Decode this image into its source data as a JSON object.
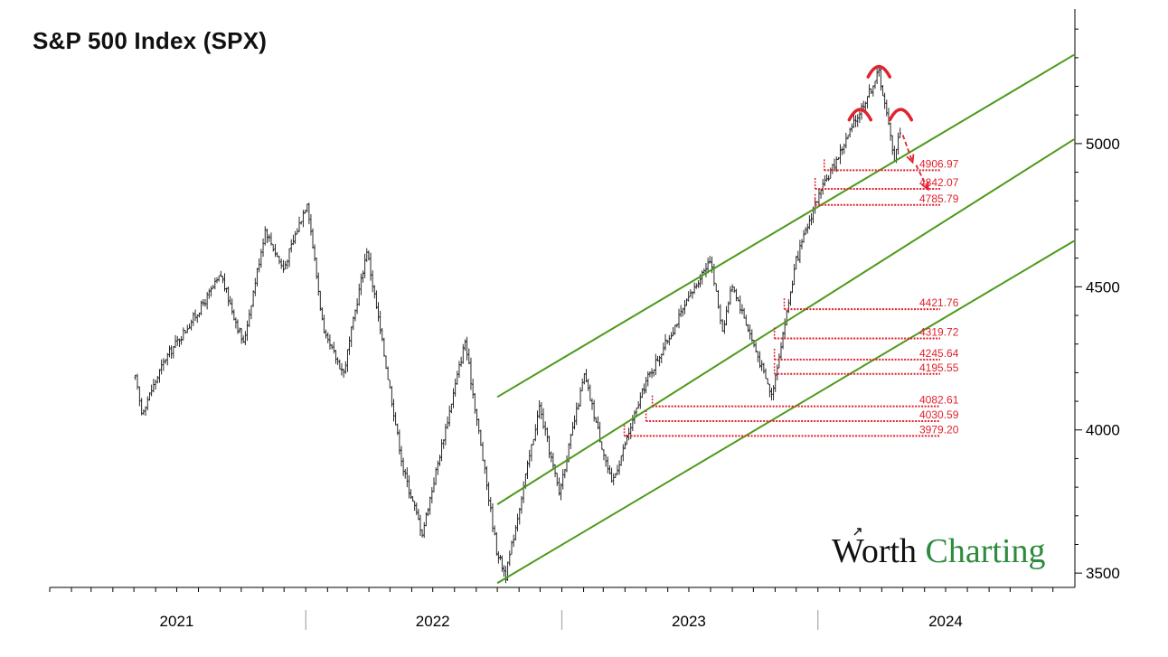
{
  "title": "S&P 500 Index (SPX)",
  "brand": {
    "word1": "Worth",
    "word2": "Charting"
  },
  "colors": {
    "price": "#111111",
    "channel": "#4c9a1a",
    "level": "#e0222e",
    "pattern": "#e0222e",
    "brand_green": "#2e8b3d"
  },
  "chart_data": {
    "type": "ohlc",
    "title": "S&P 500 Index (SPX)",
    "x_axis": {
      "tick_labels": [
        "2021",
        "2022",
        "2023",
        "2024"
      ],
      "range": [
        "2021-01-01",
        "2024-12-31"
      ]
    },
    "y_axis": {
      "ticks": [
        3500,
        4000,
        4500,
        5000
      ],
      "tick_labels": [
        "3500",
        "4000",
        "4500",
        "5000"
      ],
      "range": [
        3450,
        5470
      ],
      "side": "right"
    },
    "grid": false,
    "price_path": [
      [
        "2021-05-03",
        4180
      ],
      [
        "2021-05-12",
        4060
      ],
      [
        "2021-06-15",
        4250
      ],
      [
        "2021-08-05",
        4430
      ],
      [
        "2021-09-02",
        4540
      ],
      [
        "2021-10-04",
        4300
      ],
      [
        "2021-11-04",
        4700
      ],
      [
        "2021-11-30",
        4560
      ],
      [
        "2022-01-03",
        4800
      ],
      [
        "2022-01-27",
        4330
      ],
      [
        "2022-02-24",
        4200
      ],
      [
        "2022-03-29",
        4630
      ],
      [
        "2022-05-20",
        3860
      ],
      [
        "2022-06-16",
        3640
      ],
      [
        "2022-08-16",
        4310
      ],
      [
        "2022-09-30",
        3580
      ],
      [
        "2022-10-13",
        3490
      ],
      [
        "2022-11-30",
        4080
      ],
      [
        "2022-12-28",
        3780
      ],
      [
        "2023-02-02",
        4190
      ],
      [
        "2023-03-13",
        3810
      ],
      [
        "2023-05-01",
        4170
      ],
      [
        "2023-07-31",
        4600
      ],
      [
        "2023-08-18",
        4350
      ],
      [
        "2023-09-01",
        4510
      ],
      [
        "2023-10-27",
        4120
      ],
      [
        "2023-12-01",
        4590
      ],
      [
        "2023-12-28",
        4790
      ],
      [
        "2024-03-28",
        5250
      ],
      [
        "2024-04-19",
        4950
      ],
      [
        "2024-04-30",
        5080
      ]
    ],
    "channel_lines": [
      {
        "start": [
          "2022-10-01",
          4115
        ],
        "end": [
          "2024-12-31",
          5310
        ]
      },
      {
        "start": [
          "2022-10-01",
          3740
        ],
        "end": [
          "2024-12-31",
          5015
        ]
      },
      {
        "start": [
          "2022-10-01",
          3465
        ],
        "end": [
          "2024-12-31",
          4660
        ]
      }
    ],
    "levels": [
      {
        "label": "4906.97",
        "value": 4906.97,
        "start": "2024-01-10"
      },
      {
        "label": "4842.07",
        "value": 4842.07,
        "start": "2023-12-28"
      },
      {
        "label": "4785.79",
        "value": 4785.79,
        "start": "2023-12-28"
      },
      {
        "label": "4421.76",
        "value": 4421.76,
        "start": "2023-11-14"
      },
      {
        "label": "4319.72",
        "value": 4319.72,
        "start": "2023-10-31"
      },
      {
        "label": "4245.64",
        "value": 4245.64,
        "start": "2023-10-31"
      },
      {
        "label": "4195.55",
        "value": 4195.55,
        "start": "2023-10-31"
      },
      {
        "label": "4082.61",
        "value": 4082.61,
        "start": "2023-05-10"
      },
      {
        "label": "4030.59",
        "value": 4030.59,
        "start": "2023-05-01"
      },
      {
        "label": "3979.20",
        "value": 3979.2,
        "start": "2023-03-31"
      }
    ],
    "annotations": [
      {
        "type": "arc",
        "name": "left-shoulder",
        "at": [
          "2024-03-01",
          5105
        ]
      },
      {
        "type": "arc",
        "name": "head",
        "at": [
          "2024-03-28",
          5255
        ]
      },
      {
        "type": "arc",
        "name": "right-shoulder",
        "at": [
          "2024-04-28",
          5105
        ]
      },
      {
        "type": "arrow",
        "name": "down-arrow-1",
        "from": [
          "2024-05-01",
          5030
        ],
        "to": [
          "2024-05-15",
          4935
        ]
      },
      {
        "type": "arrow",
        "name": "down-arrow-2",
        "from": [
          "2024-05-20",
          4925
        ],
        "to": [
          "2024-06-06",
          4840
        ]
      }
    ]
  }
}
